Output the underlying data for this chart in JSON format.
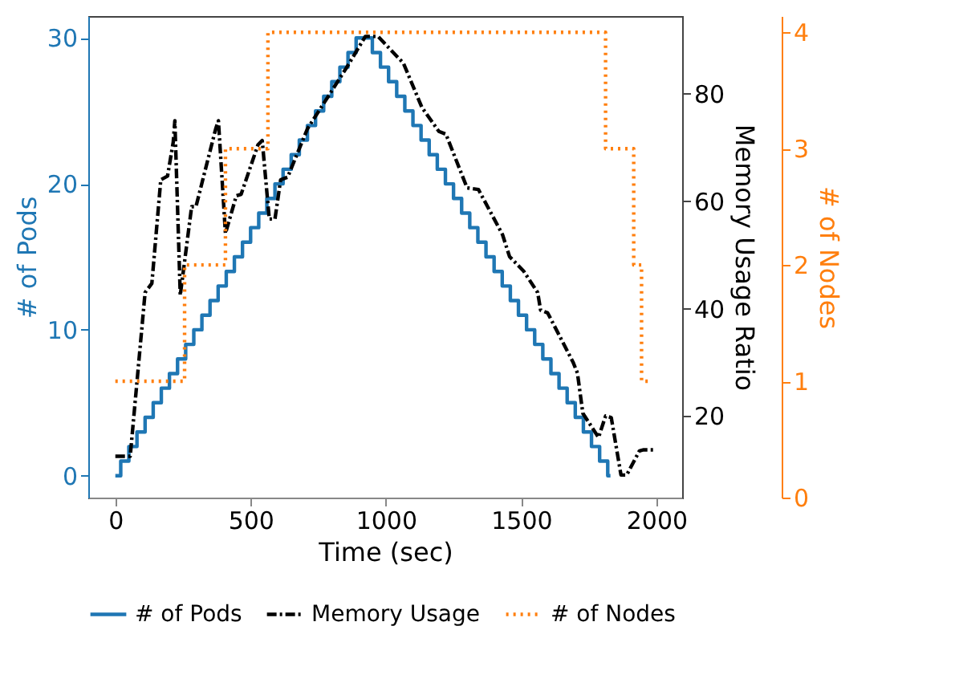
{
  "chart_data": {
    "type": "line",
    "xlabel": "Time (sec)",
    "ylabel": "# of Pods",
    "y2label": "Memory Usage Ratio",
    "y3label": "# of Nodes",
    "xlim": [
      -100,
      2095
    ],
    "xticks": [
      0,
      500,
      1000,
      1500,
      2000
    ],
    "ylim": [
      -1.5,
      31.5
    ],
    "yticks": [
      0,
      10,
      20,
      30
    ],
    "y2lim": [
      4.8,
      94.5
    ],
    "y2ticks": [
      20,
      40,
      60,
      80
    ],
    "y3lim": [
      0,
      4.14
    ],
    "y3ticks": [
      0,
      1,
      2,
      3,
      4
    ],
    "grid": false,
    "legend": "bottom",
    "marker": "none",
    "series": [
      {
        "name": "# of Pods",
        "type": "step",
        "axis": "y",
        "color": "#1f77b4",
        "line_style": "solid",
        "x": [
          0,
          20,
          50,
          80,
          110,
          140,
          170,
          200,
          230,
          260,
          290,
          320,
          350,
          380,
          410,
          440,
          470,
          500,
          530,
          560,
          590,
          620,
          650,
          680,
          710,
          740,
          770,
          800,
          830,
          860,
          890,
          950,
          980,
          1010,
          1040,
          1070,
          1100,
          1130,
          1160,
          1190,
          1220,
          1250,
          1280,
          1310,
          1340,
          1370,
          1400,
          1430,
          1460,
          1490,
          1520,
          1550,
          1580,
          1610,
          1640,
          1670,
          1700,
          1730,
          1760,
          1790,
          1820,
          1830
        ],
        "values": [
          0,
          1,
          2,
          3,
          4,
          5,
          6,
          7,
          8,
          9,
          10,
          11,
          12,
          13,
          14,
          15,
          16,
          17,
          18,
          19,
          20,
          21,
          22,
          23,
          24,
          25,
          26,
          27,
          28,
          29,
          30,
          29,
          28,
          27,
          26,
          25,
          24,
          23,
          22,
          21,
          20,
          19,
          18,
          17,
          16,
          15,
          14,
          13,
          12,
          11,
          10,
          9,
          8,
          7,
          6,
          5,
          4,
          3,
          2,
          1,
          0,
          0
        ]
      },
      {
        "name": "Memory Usage",
        "type": "line",
        "axis": "y2",
        "color": "#000000",
        "line_style": "dashed",
        "x": [
          0,
          55,
          110,
          135,
          168,
          193,
          214,
          220,
          240,
          282,
          298,
          371,
          381,
          407,
          447,
          465,
          527,
          543,
          569,
          590,
          611,
          637,
          710,
          789,
          856,
          924,
          971,
          1065,
          1133,
          1196,
          1222,
          1300,
          1342,
          1431,
          1457,
          1509,
          1561,
          1572,
          1598,
          1692,
          1708,
          1728,
          1786,
          1812,
          1833,
          1869,
          1890,
          1937,
          1953,
          1990
        ],
        "values": [
          12.5,
          12.5,
          43,
          44.7,
          64,
          64.7,
          71,
          75,
          42.5,
          59,
          59,
          73.5,
          75,
          54,
          61,
          61.3,
          70.5,
          71.3,
          56.7,
          56.7,
          64,
          64.5,
          73.5,
          79.7,
          85,
          90.7,
          90.7,
          85.7,
          77.5,
          73,
          72.5,
          62.5,
          62.2,
          53.8,
          49.7,
          47,
          43,
          39.7,
          39.2,
          30,
          28,
          20.5,
          16,
          20,
          19.7,
          9,
          9,
          13.5,
          13.7,
          13.7
        ]
      },
      {
        "name": "# of Nodes",
        "type": "step",
        "axis": "y3",
        "color": "#ff7f0e",
        "line_style": "dotted",
        "x": [
          0,
          256,
          407,
          564,
          1812,
          1916,
          1945,
          1980
        ],
        "values": [
          1,
          2,
          3,
          4,
          3,
          2,
          1,
          1
        ]
      }
    ]
  }
}
